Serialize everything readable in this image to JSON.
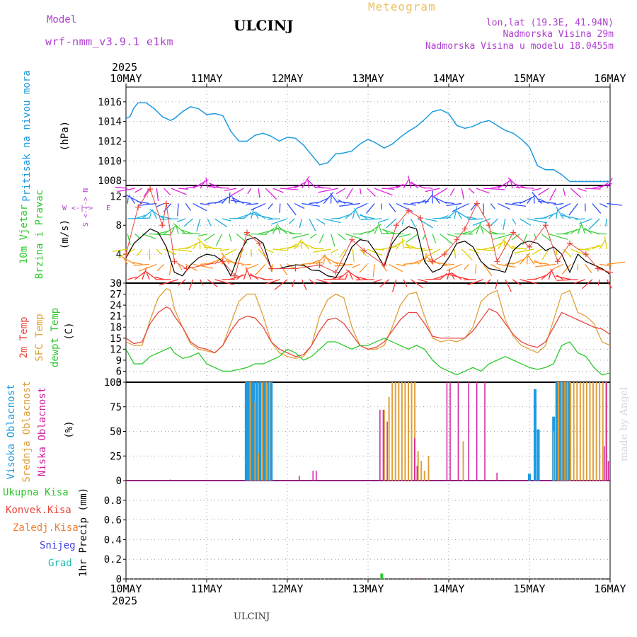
{
  "header": {
    "model_label": "Model",
    "model_name": "wrf-nmm_v3.9.1 e1km",
    "station": "ULCINJ",
    "title": "Meteogram",
    "coords": "lon,lat (19.3E, 41.94N)",
    "elevation": "Nadmorska Visina 29m",
    "model_elevation": "Nadmorska Visina u modelu 18.0455m",
    "year": "2025",
    "footer_station": "ULCINJ",
    "credit": "made by Angel"
  },
  "colors": {
    "pressure": "#1e9be0",
    "wind_label": "#2ec82e",
    "temp2m": "#e8463c",
    "sfc_temp": "#e0a03a",
    "dewpt": "#2ec82e",
    "cloud_high": "#1e9be0",
    "cloud_mid": "#e0a03a",
    "cloud_low": "#d020a0",
    "precip_total": "#2ec82e",
    "precip_conv": "#e8463c",
    "precip_frz": "#f08030",
    "snow": "#4040e0",
    "hail": "#20c0b0",
    "compass": "#b040d0",
    "wind_gust_marks": "#e8463c",
    "wind_speed_line": "#000000"
  },
  "time_axis": {
    "labels": [
      "10MAY",
      "11MAY",
      "12MAY",
      "13MAY",
      "14MAY",
      "15MAY",
      "16MAY"
    ],
    "days": 6
  },
  "compass": {
    "n": "N",
    "s": "S",
    "e": "E",
    "w": "W",
    "glyph": "<-|->"
  },
  "chart_data": [
    {
      "type": "line",
      "name": "pressure",
      "ylabel_1": "Pritisak na nivou mora",
      "ylabel_2": "(hPa)",
      "ylim": [
        1007.5,
        1017.5
      ],
      "yticks": [
        1008,
        1010,
        1012,
        1014,
        1016
      ],
      "x_days": [
        0,
        0.05,
        0.1,
        0.15,
        0.25,
        0.35,
        0.45,
        0.55,
        0.6,
        0.7,
        0.8,
        0.9,
        1.0,
        1.1,
        1.2,
        1.3,
        1.4,
        1.5,
        1.6,
        1.7,
        1.8,
        1.9,
        2.0,
        2.1,
        2.2,
        2.3,
        2.4,
        2.5,
        2.6,
        2.7,
        2.8,
        2.9,
        3.0,
        3.1,
        3.2,
        3.3,
        3.4,
        3.5,
        3.6,
        3.7,
        3.8,
        3.9,
        4.0,
        4.1,
        4.2,
        4.3,
        4.4,
        4.5,
        4.6,
        4.7,
        4.8,
        4.9,
        5.0,
        5.1,
        5.2,
        5.3,
        5.4,
        5.5,
        5.6,
        5.7,
        5.8,
        5.9,
        6.0
      ],
      "values": [
        1014.3,
        1014.5,
        1015.4,
        1015.9,
        1015.9,
        1015.3,
        1014.5,
        1014.1,
        1014.3,
        1015.0,
        1015.5,
        1015.3,
        1014.7,
        1014.8,
        1014.6,
        1013.0,
        1012.0,
        1012.0,
        1012.6,
        1012.8,
        1012.5,
        1012.0,
        1012.4,
        1012.3,
        1011.6,
        1010.6,
        1009.6,
        1009.8,
        1010.7,
        1010.8,
        1011.0,
        1011.7,
        1012.2,
        1011.8,
        1011.3,
        1011.7,
        1012.4,
        1013.0,
        1013.5,
        1014.2,
        1015.0,
        1015.2,
        1014.8,
        1013.6,
        1013.3,
        1013.5,
        1013.9,
        1014.1,
        1013.6,
        1013.1,
        1012.8,
        1012.2,
        1011.4,
        1009.5,
        1009.1,
        1009.1,
        1008.6,
        1007.9,
        1007.9,
        1007.9,
        1007.9,
        1007.9,
        1007.9
      ]
    },
    {
      "type": "line",
      "name": "wind",
      "ylabel_1": "10m Vjetar",
      "ylabel_2": "Brzina i Pravac",
      "ylabel_3": "(m/s)",
      "ylim": [
        0,
        13.5
      ],
      "yticks": [
        0,
        4,
        8,
        12
      ],
      "x_days": [
        0,
        0.1,
        0.2,
        0.3,
        0.4,
        0.5,
        0.6,
        0.7,
        0.8,
        0.9,
        1.0,
        1.1,
        1.2,
        1.3,
        1.4,
        1.5,
        1.6,
        1.7,
        1.8,
        1.9,
        2.0,
        2.1,
        2.2,
        2.3,
        2.4,
        2.5,
        2.6,
        2.7,
        2.8,
        2.9,
        3.0,
        3.1,
        3.2,
        3.3,
        3.4,
        3.5,
        3.6,
        3.7,
        3.8,
        3.9,
        4.0,
        4.1,
        4.2,
        4.3,
        4.4,
        4.5,
        4.6,
        4.7,
        4.8,
        4.9,
        5.0,
        5.1,
        5.2,
        5.3,
        5.4,
        5.5,
        5.6,
        5.7,
        5.8,
        5.9,
        6.0
      ],
      "speed": [
        3.5,
        5.5,
        6.5,
        7.5,
        7.0,
        5.0,
        1.5,
        1.0,
        2.5,
        3.5,
        4.0,
        3.8,
        3.0,
        1.0,
        4.0,
        6.0,
        6.3,
        5.5,
        2.0,
        2.0,
        2.3,
        2.5,
        2.5,
        1.8,
        1.7,
        1.0,
        0.8,
        2.5,
        5.0,
        6.0,
        5.8,
        4.2,
        2.3,
        5.5,
        7.0,
        7.8,
        7.5,
        3.0,
        1.5,
        2.0,
        3.5,
        5.5,
        5.8,
        5.0,
        3.0,
        2.0,
        1.8,
        1.5,
        4.5,
        5.5,
        5.8,
        5.5,
        4.5,
        5.0,
        4.0,
        1.5,
        4.0,
        3.0,
        2.5,
        2.0,
        1.2
      ],
      "gust_days": [
        0,
        0.15,
        0.3,
        0.45,
        0.5,
        0.6,
        0.75,
        1.2,
        1.35,
        1.5,
        1.65,
        1.8,
        2.1,
        2.4,
        2.6,
        2.8,
        2.95,
        3.2,
        3.35,
        3.5,
        3.65,
        3.8,
        3.95,
        4.1,
        4.2,
        4.35,
        4.5,
        4.6,
        4.8,
        5.0,
        5.2,
        5.35,
        5.5,
        5.7,
        5.85,
        6.0
      ],
      "gust_values": [
        4,
        10.5,
        13,
        8,
        11,
        3,
        2,
        3,
        1,
        7,
        5.5,
        2,
        2,
        2.5,
        1.5,
        6,
        4.5,
        2.5,
        8,
        10,
        9,
        3,
        4,
        6,
        7.5,
        11,
        8,
        3,
        7,
        5,
        8,
        3,
        5.5,
        4,
        2,
        1.5
      ]
    },
    {
      "type": "line",
      "name": "temperature",
      "ylabel_1": "2m Temp",
      "ylabel_2": "SFC Temp",
      "ylabel_3": "dewpt Temp",
      "ylabel_4": "(C)",
      "ylim": [
        3,
        30
      ],
      "yticks": [
        3,
        6,
        9,
        12,
        15,
        18,
        21,
        24,
        27,
        30
      ],
      "x_days": [
        0,
        0.1,
        0.2,
        0.3,
        0.4,
        0.5,
        0.55,
        0.6,
        0.7,
        0.8,
        0.9,
        1.0,
        1.1,
        1.2,
        1.3,
        1.4,
        1.5,
        1.6,
        1.7,
        1.8,
        1.9,
        2.0,
        2.1,
        2.2,
        2.3,
        2.4,
        2.5,
        2.6,
        2.7,
        2.8,
        2.9,
        3.0,
        3.1,
        3.2,
        3.3,
        3.4,
        3.5,
        3.6,
        3.7,
        3.8,
        3.9,
        4.0,
        4.1,
        4.2,
        4.3,
        4.4,
        4.5,
        4.6,
        4.7,
        4.8,
        4.9,
        5.0,
        5.1,
        5.2,
        5.3,
        5.4,
        5.5,
        5.6,
        5.7,
        5.8,
        5.9,
        6.0
      ],
      "temp2m": [
        15,
        13.5,
        14,
        19,
        22,
        23.5,
        23,
        21,
        18,
        14,
        12.5,
        12,
        11,
        13,
        17,
        20,
        21,
        20.5,
        18,
        14,
        12,
        11,
        10,
        10.5,
        13,
        17,
        20,
        20.5,
        19,
        16,
        13,
        12,
        12.5,
        14,
        17,
        20,
        22,
        22,
        19,
        15.5,
        15,
        15,
        15,
        15,
        17,
        20,
        23,
        22,
        19,
        16,
        14,
        13,
        12.5,
        14,
        18,
        22,
        21,
        20,
        19,
        18,
        17.5,
        16
      ],
      "sfc_temp": [
        14,
        13,
        13,
        20,
        26,
        28.5,
        28,
        23,
        18,
        13.5,
        12,
        11.5,
        11,
        13,
        19,
        25,
        27,
        27,
        21,
        14,
        11,
        10,
        9.5,
        10,
        13,
        21,
        25.5,
        27,
        26,
        18,
        13,
        12,
        12,
        13,
        18,
        24,
        27,
        27.5,
        21,
        15,
        14,
        14.5,
        14,
        15,
        18,
        25,
        27,
        28,
        20,
        15.5,
        13,
        12,
        11,
        13,
        20,
        27,
        28,
        22,
        21,
        19,
        14,
        13
      ],
      "dewpt": [
        12,
        8,
        8,
        10,
        11,
        12,
        12.5,
        11,
        9.5,
        10,
        11,
        8,
        7,
        6,
        6,
        6.5,
        7,
        8,
        8,
        9,
        10,
        12,
        11,
        9,
        10,
        12,
        14,
        14,
        13,
        12,
        13,
        13,
        14,
        15,
        14,
        13,
        12,
        13,
        12,
        9,
        7,
        6,
        5,
        6,
        7,
        6,
        8,
        9,
        10,
        9,
        8,
        7,
        6.5,
        7,
        8,
        13,
        14,
        11,
        10,
        7,
        5,
        5.5
      ]
    },
    {
      "type": "bar",
      "name": "cloud",
      "ylabel_1": "Visoka Oblacnost",
      "ylabel_2": "Srednja Oblacnost",
      "ylabel_3": "Niska Oblacnost",
      "ylabel_4": "(%)",
      "ylim": [
        0,
        100
      ],
      "yticks": [
        0,
        25,
        50,
        75,
        100
      ],
      "high": [
        [
          1.49,
          100
        ],
        [
          1.52,
          100
        ],
        [
          1.56,
          100
        ],
        [
          1.58,
          100
        ],
        [
          1.62,
          100
        ],
        [
          1.66,
          100
        ],
        [
          1.7,
          100
        ],
        [
          1.73,
          100
        ],
        [
          1.77,
          100
        ],
        [
          1.8,
          100
        ],
        [
          5.07,
          93
        ],
        [
          5.11,
          52
        ],
        [
          5.0,
          7
        ],
        [
          5.3,
          65
        ],
        [
          5.34,
          100
        ],
        [
          5.38,
          100
        ],
        [
          5.42,
          100
        ],
        [
          5.45,
          100
        ],
        [
          5.49,
          100
        ]
      ],
      "mid": [
        [
          1.54,
          100
        ],
        [
          1.6,
          80
        ],
        [
          1.64,
          28
        ],
        [
          1.69,
          100
        ],
        [
          1.74,
          100
        ],
        [
          1.78,
          100
        ],
        [
          3.2,
          72
        ],
        [
          3.26,
          85
        ],
        [
          3.3,
          100
        ],
        [
          3.34,
          100
        ],
        [
          3.38,
          100
        ],
        [
          3.42,
          100
        ],
        [
          3.46,
          100
        ],
        [
          3.5,
          100
        ],
        [
          3.54,
          100
        ],
        [
          3.58,
          100
        ],
        [
          3.62,
          30
        ],
        [
          3.66,
          20
        ],
        [
          3.7,
          10
        ],
        [
          3.75,
          25
        ],
        [
          4.18,
          40
        ],
        [
          5.3,
          50
        ],
        [
          5.36,
          100
        ],
        [
          5.4,
          100
        ],
        [
          5.44,
          100
        ],
        [
          5.47,
          100
        ],
        [
          5.51,
          100
        ],
        [
          5.55,
          100
        ],
        [
          5.59,
          100
        ],
        [
          5.63,
          100
        ],
        [
          5.67,
          100
        ],
        [
          5.71,
          100
        ],
        [
          5.75,
          100
        ],
        [
          5.79,
          100
        ],
        [
          5.83,
          100
        ],
        [
          5.87,
          100
        ],
        [
          5.91,
          100
        ],
        [
          5.95,
          100
        ]
      ],
      "low": [
        [
          0.55,
          1
        ],
        [
          2.15,
          5
        ],
        [
          2.32,
          10
        ],
        [
          2.36,
          10
        ],
        [
          3.15,
          72
        ],
        [
          3.19,
          72
        ],
        [
          3.24,
          60
        ],
        [
          3.58,
          43
        ],
        [
          3.61,
          15
        ],
        [
          3.98,
          100
        ],
        [
          4.02,
          100
        ],
        [
          4.12,
          100
        ],
        [
          4.25,
          100
        ],
        [
          4.35,
          100
        ],
        [
          4.45,
          100
        ],
        [
          4.6,
          8
        ],
        [
          5.93,
          35
        ],
        [
          5.96,
          100
        ],
        [
          5.98,
          20
        ]
      ]
    },
    {
      "type": "bar",
      "name": "precip",
      "ylabel_1": "1hr Precip (mm)",
      "legend": [
        "Ukupna Kisa",
        "Konvek.Kisa",
        "Zaledj.Kisa",
        "Snijeg",
        "Grad"
      ],
      "ylim": [
        0,
        1.0
      ],
      "yticks": [
        0,
        0.2,
        0.4,
        0.6,
        0.8
      ],
      "total": [
        [
          3.17,
          0.055
        ]
      ],
      "conv": [
        [
          3.62,
          0.008
        ]
      ]
    }
  ]
}
